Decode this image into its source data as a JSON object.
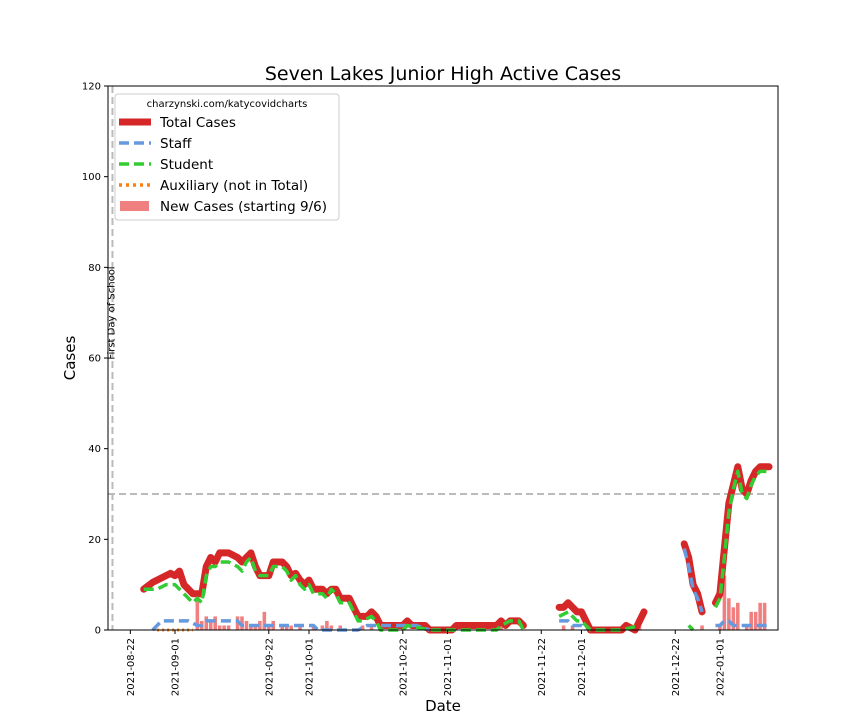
{
  "chart_data": {
    "type": "line",
    "title": "Seven Lakes Junior High Active Cases",
    "xlabel": "Date",
    "ylabel": "Cases",
    "ylim": [
      0,
      120
    ],
    "yticks": [
      0,
      20,
      40,
      60,
      80,
      100,
      120
    ],
    "xlim": [
      "2021-08-17",
      "2022-01-14"
    ],
    "xticks": [
      "2021-08-22",
      "2021-09-01",
      "2021-09-22",
      "2021-10-01",
      "2021-10-22",
      "2021-11-01",
      "2021-11-22",
      "2021-12-01",
      "2021-12-22",
      "2022-01-01"
    ],
    "grid": false,
    "legend_position": "top-left",
    "legend_header": "charzynski.com/katycovidcharts",
    "threshold_line": 30,
    "annotations": [
      {
        "text": "First Day of School",
        "date": "2021-08-18"
      }
    ],
    "series": [
      {
        "name": "Total Cases",
        "color": "#d62728",
        "points": [
          [
            "2021-08-25",
            9
          ],
          [
            "2021-08-27",
            10.5
          ],
          [
            "2021-08-29",
            11.5
          ],
          [
            "2021-08-31",
            12.5
          ],
          [
            "2021-09-01",
            12
          ],
          [
            "2021-09-02",
            13
          ],
          [
            "2021-09-03",
            10
          ],
          [
            "2021-09-05",
            8
          ],
          [
            "2021-09-06",
            8
          ],
          [
            "2021-09-07",
            8
          ],
          [
            "2021-09-08",
            14
          ],
          [
            "2021-09-09",
            16
          ],
          [
            "2021-09-10",
            15
          ],
          [
            "2021-09-11",
            17
          ],
          [
            "2021-09-13",
            17
          ],
          [
            "2021-09-15",
            16
          ],
          [
            "2021-09-16",
            15
          ],
          [
            "2021-09-17",
            16
          ],
          [
            "2021-09-18",
            17
          ],
          [
            "2021-09-19",
            14
          ],
          [
            "2021-09-20",
            12
          ],
          [
            "2021-09-22",
            12
          ],
          [
            "2021-09-23",
            15
          ],
          [
            "2021-09-25",
            15
          ],
          [
            "2021-09-26",
            14
          ],
          [
            "2021-09-27",
            12
          ],
          [
            "2021-09-28",
            12.5
          ],
          [
            "2021-09-29",
            11
          ],
          [
            "2021-09-30",
            10
          ],
          [
            "2021-10-01",
            11
          ],
          [
            "2021-10-02",
            9
          ],
          [
            "2021-10-04",
            9
          ],
          [
            "2021-10-05",
            8
          ],
          [
            "2021-10-06",
            9
          ],
          [
            "2021-10-07",
            9
          ],
          [
            "2021-10-08",
            7
          ],
          [
            "2021-10-10",
            7
          ],
          [
            "2021-10-12",
            3
          ],
          [
            "2021-10-13",
            3
          ],
          [
            "2021-10-14",
            3
          ],
          [
            "2021-10-15",
            4
          ],
          [
            "2021-10-16",
            3
          ],
          [
            "2021-10-17",
            1
          ],
          [
            "2021-10-22",
            1
          ],
          [
            "2021-10-23",
            2
          ],
          [
            "2021-10-24",
            1
          ],
          [
            "2021-10-27",
            1
          ],
          [
            "2021-10-28",
            0
          ],
          [
            "2021-11-02",
            0
          ],
          [
            "2021-11-03",
            1
          ],
          [
            "2021-11-04",
            1
          ],
          [
            "2021-11-08",
            1
          ],
          [
            "2021-11-12",
            1
          ],
          [
            "2021-11-13",
            2
          ],
          [
            "2021-11-14",
            1
          ],
          [
            "2021-11-15",
            2
          ],
          [
            "2021-11-17",
            2
          ],
          [
            "2021-11-18",
            1
          ]
        ]
      },
      {
        "name": "Total Cases (continued)",
        "color": "#d62728",
        "points": [
          [
            "2021-11-26",
            5
          ],
          [
            "2021-11-27",
            5
          ],
          [
            "2021-11-28",
            6
          ],
          [
            "2021-11-29",
            5
          ],
          [
            "2021-11-30",
            4
          ],
          [
            "2021-12-01",
            4
          ],
          [
            "2021-12-03",
            0
          ],
          [
            "2021-12-10",
            0
          ],
          [
            "2021-12-11",
            1
          ],
          [
            "2021-12-13",
            0
          ],
          [
            "2021-12-15",
            4
          ]
        ]
      },
      {
        "name": "Total Cases (winter)",
        "color": "#d62728",
        "points": [
          [
            "2021-12-24",
            19
          ],
          [
            "2021-12-25",
            16
          ],
          [
            "2021-12-26",
            10
          ],
          [
            "2021-12-27",
            8
          ],
          [
            "2021-12-28",
            4
          ]
        ]
      },
      {
        "name": "Total Cases (january)",
        "color": "#d62728",
        "points": [
          [
            "2021-12-31",
            6
          ],
          [
            "2022-01-01",
            8
          ],
          [
            "2022-01-02",
            18
          ],
          [
            "2022-01-03",
            28
          ],
          [
            "2022-01-04",
            32
          ],
          [
            "2022-01-05",
            36
          ],
          [
            "2022-01-06",
            31
          ],
          [
            "2022-01-07",
            30
          ],
          [
            "2022-01-08",
            33
          ],
          [
            "2022-01-09",
            35
          ],
          [
            "2022-01-10",
            36
          ],
          [
            "2022-01-12",
            36
          ]
        ]
      },
      {
        "name": "Staff",
        "color": "#6699dd",
        "points": [
          [
            "2021-08-27",
            0
          ],
          [
            "2021-08-29",
            2
          ],
          [
            "2021-09-02",
            2
          ],
          [
            "2021-09-04",
            2
          ],
          [
            "2021-09-06",
            1
          ],
          [
            "2021-09-07",
            1
          ],
          [
            "2021-09-08",
            2
          ],
          [
            "2021-09-13",
            2
          ],
          [
            "2021-09-15",
            2
          ],
          [
            "2021-09-16",
            1
          ],
          [
            "2021-09-20",
            1
          ],
          [
            "2021-09-22",
            1
          ],
          [
            "2021-09-24",
            1
          ],
          [
            "2021-09-27",
            1
          ],
          [
            "2021-09-29",
            1
          ],
          [
            "2021-10-02",
            1
          ],
          [
            "2021-10-03",
            0
          ],
          [
            "2021-10-12",
            0
          ],
          [
            "2021-10-14",
            1
          ],
          [
            "2021-10-19",
            1
          ],
          [
            "2021-10-21",
            1
          ],
          [
            "2021-10-25",
            1
          ],
          [
            "2021-10-28",
            0
          ]
        ]
      },
      {
        "name": "Staff (continued)",
        "color": "#6699dd",
        "points": [
          [
            "2021-11-26",
            2
          ],
          [
            "2021-11-28",
            2
          ],
          [
            "2021-11-29",
            1
          ],
          [
            "2021-11-30",
            1
          ],
          [
            "2021-12-01",
            1
          ],
          [
            "2021-12-02",
            0
          ]
        ]
      },
      {
        "name": "Staff (winter)",
        "color": "#6699dd",
        "points": [
          [
            "2021-12-24",
            18
          ],
          [
            "2021-12-25",
            14
          ],
          [
            "2021-12-26",
            9
          ],
          [
            "2021-12-27",
            7
          ],
          [
            "2021-12-28",
            4
          ]
        ]
      },
      {
        "name": "Staff (january)",
        "color": "#6699dd",
        "points": [
          [
            "2021-12-31",
            1
          ],
          [
            "2022-01-01",
            1
          ],
          [
            "2022-01-02",
            2
          ],
          [
            "2022-01-03",
            2
          ],
          [
            "2022-01-04",
            1
          ],
          [
            "2022-01-05",
            1
          ],
          [
            "2022-01-08",
            1
          ],
          [
            "2022-01-10",
            1
          ],
          [
            "2022-01-12",
            1
          ]
        ]
      },
      {
        "name": "Student",
        "color": "#33cc33",
        "points": [
          [
            "2021-08-25",
            9
          ],
          [
            "2021-08-28",
            9
          ],
          [
            "2021-08-30",
            10
          ],
          [
            "2021-09-01",
            10
          ],
          [
            "2021-09-02",
            9
          ],
          [
            "2021-09-03",
            8
          ],
          [
            "2021-09-05",
            6
          ],
          [
            "2021-09-06",
            7
          ],
          [
            "2021-09-07",
            6
          ],
          [
            "2021-09-08",
            12
          ],
          [
            "2021-09-09",
            14
          ],
          [
            "2021-09-10",
            14
          ],
          [
            "2021-09-11",
            15
          ],
          [
            "2021-09-13",
            15
          ],
          [
            "2021-09-15",
            14
          ],
          [
            "2021-09-16",
            13
          ],
          [
            "2021-09-17",
            15
          ],
          [
            "2021-09-18",
            16
          ],
          [
            "2021-09-19",
            13
          ],
          [
            "2021-09-20",
            12
          ],
          [
            "2021-09-22",
            12
          ],
          [
            "2021-09-23",
            14
          ],
          [
            "2021-09-25",
            14
          ],
          [
            "2021-09-26",
            13
          ],
          [
            "2021-09-27",
            11
          ],
          [
            "2021-09-28",
            12
          ],
          [
            "2021-09-29",
            10
          ],
          [
            "2021-09-30",
            9
          ],
          [
            "2021-10-01",
            10
          ],
          [
            "2021-10-02",
            8
          ],
          [
            "2021-10-04",
            8
          ],
          [
            "2021-10-05",
            7
          ],
          [
            "2021-10-06",
            9
          ],
          [
            "2021-10-07",
            8
          ],
          [
            "2021-10-08",
            6
          ],
          [
            "2021-10-10",
            6
          ],
          [
            "2021-10-12",
            2
          ],
          [
            "2021-10-13",
            2
          ],
          [
            "2021-10-15",
            3
          ],
          [
            "2021-10-16",
            2
          ],
          [
            "2021-10-17",
            0
          ],
          [
            "2021-10-22",
            0
          ],
          [
            "2021-10-23",
            1
          ],
          [
            "2021-10-28",
            0
          ],
          [
            "2021-11-02",
            0
          ],
          [
            "2021-11-03",
            0
          ],
          [
            "2021-11-08",
            0
          ],
          [
            "2021-11-12",
            0
          ],
          [
            "2021-11-13",
            1
          ],
          [
            "2021-11-15",
            2
          ],
          [
            "2021-11-17",
            2
          ],
          [
            "2021-11-18",
            0
          ]
        ]
      },
      {
        "name": "Student (continued)",
        "color": "#33cc33",
        "points": [
          [
            "2021-11-26",
            3
          ],
          [
            "2021-11-28",
            4
          ],
          [
            "2021-11-29",
            3
          ],
          [
            "2021-11-30",
            2
          ],
          [
            "2021-12-01",
            2
          ],
          [
            "2021-12-03",
            0
          ],
          [
            "2021-12-10",
            0
          ],
          [
            "2021-12-14",
            1
          ]
        ]
      },
      {
        "name": "Student (winter)",
        "color": "#33cc33",
        "points": [
          [
            "2021-12-25",
            1
          ],
          [
            "2021-12-26",
            0
          ]
        ]
      },
      {
        "name": "Student (january)",
        "color": "#33cc33",
        "points": [
          [
            "2021-12-31",
            5
          ],
          [
            "2022-01-01",
            7
          ],
          [
            "2022-01-02",
            16
          ],
          [
            "2022-01-03",
            26
          ],
          [
            "2022-01-04",
            31
          ],
          [
            "2022-01-05",
            35
          ],
          [
            "2022-01-06",
            30
          ],
          [
            "2022-01-07",
            29
          ],
          [
            "2022-01-08",
            32
          ],
          [
            "2022-01-09",
            34
          ],
          [
            "2022-01-10",
            35
          ],
          [
            "2022-01-12",
            35
          ]
        ]
      },
      {
        "name": "Auxiliary (not in Total)",
        "color": "#ff7f0e",
        "points": [
          [
            "2021-08-28",
            0
          ],
          [
            "2021-09-05",
            0
          ]
        ]
      }
    ],
    "bars": {
      "name": "New Cases (starting 9/6)",
      "color": "#f08080",
      "points": [
        [
          "2021-09-06",
          7
        ],
        [
          "2021-09-07",
          2
        ],
        [
          "2021-09-08",
          3
        ],
        [
          "2021-09-09",
          2
        ],
        [
          "2021-09-10",
          3
        ],
        [
          "2021-09-11",
          1
        ],
        [
          "2021-09-12",
          1
        ],
        [
          "2021-09-13",
          1
        ],
        [
          "2021-09-15",
          3
        ],
        [
          "2021-09-16",
          3
        ],
        [
          "2021-09-17",
          2
        ],
        [
          "2021-09-18",
          1
        ],
        [
          "2021-09-19",
          1
        ],
        [
          "2021-09-20",
          2
        ],
        [
          "2021-09-21",
          4
        ],
        [
          "2021-09-22",
          1
        ],
        [
          "2021-09-23",
          2
        ],
        [
          "2021-09-25",
          1
        ],
        [
          "2021-09-26",
          1
        ],
        [
          "2021-09-27",
          1
        ],
        [
          "2021-09-29",
          1
        ],
        [
          "2021-10-02",
          1
        ],
        [
          "2021-10-04",
          1
        ],
        [
          "2021-10-05",
          2
        ],
        [
          "2021-10-06",
          1
        ],
        [
          "2021-10-08",
          1
        ],
        [
          "2021-10-13",
          1
        ],
        [
          "2021-10-15",
          1
        ],
        [
          "2021-10-22",
          1
        ],
        [
          "2021-11-13",
          1
        ],
        [
          "2021-11-27",
          1
        ],
        [
          "2021-11-29",
          1
        ],
        [
          "2021-12-14",
          1
        ],
        [
          "2021-12-28",
          1
        ],
        [
          "2022-01-01",
          1
        ],
        [
          "2022-01-02",
          12
        ],
        [
          "2022-01-03",
          7
        ],
        [
          "2022-01-04",
          5
        ],
        [
          "2022-01-05",
          6
        ],
        [
          "2022-01-07",
          1
        ],
        [
          "2022-01-08",
          4
        ],
        [
          "2022-01-09",
          4
        ],
        [
          "2022-01-10",
          6
        ],
        [
          "2022-01-11",
          6
        ]
      ]
    }
  }
}
